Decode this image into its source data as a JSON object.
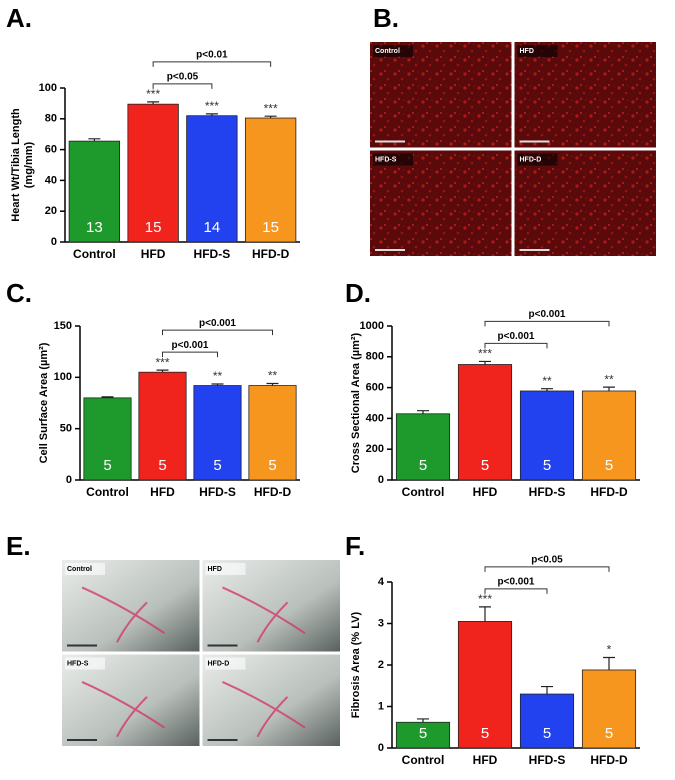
{
  "chart_data": [
    {
      "type": "bar",
      "panel": "A.",
      "ylabel": [
        "Heart Wt/Tibia Length",
        "(mg/mm)"
      ],
      "categories": [
        "Control",
        "HFD",
        "HFD-S",
        "HFD-D"
      ],
      "values": [
        65.5,
        89.5,
        82,
        80.5
      ],
      "errors": [
        1.5,
        1.5,
        1.2,
        1.2
      ],
      "n": [
        13,
        15,
        14,
        15
      ],
      "significance": [
        null,
        "***",
        "***",
        "***"
      ],
      "comparisons": [
        {
          "label": "p<0.05",
          "groups": [
            "HFD",
            "HFD-S"
          ]
        },
        {
          "label": "p<0.01",
          "groups": [
            "HFD",
            "HFD-D"
          ]
        }
      ],
      "colors": [
        "#1e9a2c",
        "#f0231d",
        "#2142ee",
        "#f7961f"
      ],
      "ylim": [
        0,
        100
      ],
      "yticks": [
        0,
        20,
        40,
        60,
        80,
        100
      ]
    },
    {
      "type": "bar",
      "panel": "C.",
      "ylabel": [
        "Cell Surface Area (µm²)"
      ],
      "categories": [
        "Control",
        "HFD",
        "HFD-S",
        "HFD-D"
      ],
      "values": [
        80,
        105,
        92,
        92
      ],
      "errors": [
        1,
        2,
        1.5,
        2
      ],
      "n": [
        5,
        5,
        5,
        5
      ],
      "significance": [
        null,
        "***",
        "**",
        "**"
      ],
      "comparisons": [
        {
          "label": "p<0.001",
          "groups": [
            "HFD",
            "HFD-S"
          ]
        },
        {
          "label": "p<0.001",
          "groups": [
            "HFD",
            "HFD-D"
          ]
        }
      ],
      "colors": [
        "#1e9a2c",
        "#f0231d",
        "#2142ee",
        "#f7961f"
      ],
      "ylim": [
        0,
        150
      ],
      "yticks": [
        0,
        50,
        100,
        150
      ]
    },
    {
      "type": "bar",
      "panel": "D.",
      "ylabel": [
        "Cross Sectional Area (µm²)"
      ],
      "categories": [
        "Control",
        "HFD",
        "HFD-S",
        "HFD-D"
      ],
      "values": [
        430,
        750,
        578,
        578
      ],
      "errors": [
        20,
        20,
        15,
        25
      ],
      "n": [
        5,
        5,
        5,
        5
      ],
      "significance": [
        null,
        "***",
        "**",
        "**"
      ],
      "comparisons": [
        {
          "label": "p<0.001",
          "groups": [
            "HFD",
            "HFD-S"
          ]
        },
        {
          "label": "p<0.001",
          "groups": [
            "HFD",
            "HFD-D"
          ]
        }
      ],
      "colors": [
        "#1e9a2c",
        "#f0231d",
        "#2142ee",
        "#f7961f"
      ],
      "ylim": [
        0,
        1000
      ],
      "yticks": [
        0,
        200,
        400,
        600,
        800,
        1000
      ]
    },
    {
      "type": "bar",
      "panel": "F.",
      "ylabel": [
        "Fibrosis Area (% LV)"
      ],
      "categories": [
        "Control",
        "HFD",
        "HFD-S",
        "HFD-D"
      ],
      "values": [
        0.62,
        3.05,
        1.3,
        1.88
      ],
      "errors": [
        0.08,
        0.35,
        0.18,
        0.3
      ],
      "n": [
        5,
        5,
        5,
        5
      ],
      "significance": [
        null,
        "***",
        null,
        "*"
      ],
      "comparisons": [
        {
          "label": "p<0.001",
          "groups": [
            "HFD",
            "HFD-S"
          ]
        },
        {
          "label": "p<0.05",
          "groups": [
            "HFD",
            "HFD-D"
          ]
        }
      ],
      "colors": [
        "#1e9a2c",
        "#f0231d",
        "#2142ee",
        "#f7961f"
      ],
      "ylim": [
        0,
        4
      ],
      "yticks": [
        0,
        1,
        2,
        3,
        4
      ]
    }
  ],
  "image_panels": [
    {
      "panel": "B.",
      "images": [
        "Control",
        "HFD",
        "HFD-S",
        "HFD-D"
      ]
    },
    {
      "panel": "E.",
      "images": [
        "Control",
        "HFD",
        "HFD-S",
        "HFD-D"
      ]
    }
  ]
}
